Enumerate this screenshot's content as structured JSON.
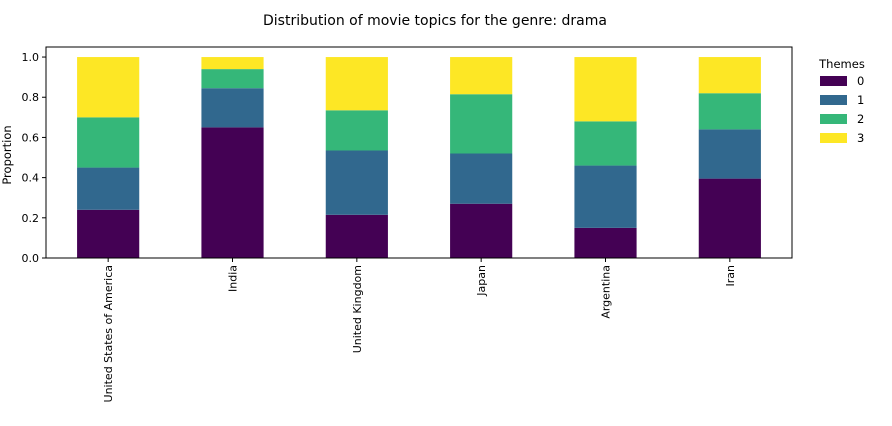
{
  "chart_data": {
    "type": "bar",
    "stacked": true,
    "title": "Distribution of movie topics for the genre: drama",
    "xlabel": "",
    "ylabel": "Proportion",
    "ylim": [
      0,
      1.05
    ],
    "yticks": [
      "0.0",
      "0.2",
      "0.4",
      "0.6",
      "0.8",
      "1.0"
    ],
    "categories": [
      "United States of America",
      "India",
      "United Kingdom",
      "Japan",
      "Argentina",
      "Iran"
    ],
    "series": [
      {
        "name": "0",
        "color": "#440154",
        "values": [
          0.24,
          0.65,
          0.215,
          0.27,
          0.15,
          0.395
        ]
      },
      {
        "name": "1",
        "color": "#31688e",
        "values": [
          0.21,
          0.195,
          0.32,
          0.25,
          0.31,
          0.245
        ]
      },
      {
        "name": "2",
        "color": "#35b779",
        "values": [
          0.25,
          0.095,
          0.2,
          0.295,
          0.22,
          0.18
        ]
      },
      {
        "name": "3",
        "color": "#fde725",
        "values": [
          0.3,
          0.06,
          0.265,
          0.185,
          0.32,
          0.18
        ]
      }
    ],
    "legend": {
      "title": "Themes",
      "placement": "right"
    },
    "grid": false
  }
}
